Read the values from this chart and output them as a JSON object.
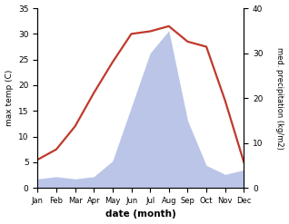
{
  "months": [
    "Jan",
    "Feb",
    "Mar",
    "Apr",
    "May",
    "Jun",
    "Jul",
    "Aug",
    "Sep",
    "Oct",
    "Nov",
    "Dec"
  ],
  "temp": [
    5.5,
    7.5,
    12.0,
    18.5,
    24.5,
    30.0,
    30.5,
    31.5,
    28.5,
    27.5,
    17.0,
    5.0
  ],
  "precip": [
    2.0,
    2.5,
    2.0,
    2.5,
    6.0,
    18.0,
    30.0,
    35.0,
    15.0,
    5.0,
    3.0,
    4.0
  ],
  "temp_color": "#c0392b",
  "precip_fill_color": "#bbc5e8",
  "ylim_temp": [
    0,
    35
  ],
  "ylim_precip": [
    0,
    40
  ],
  "ylabel_left": "max temp (C)",
  "ylabel_right": "med. precipitation (kg/m2)",
  "xlabel": "date (month)",
  "bg_color": "#ffffff",
  "temp_linewidth": 1.6
}
